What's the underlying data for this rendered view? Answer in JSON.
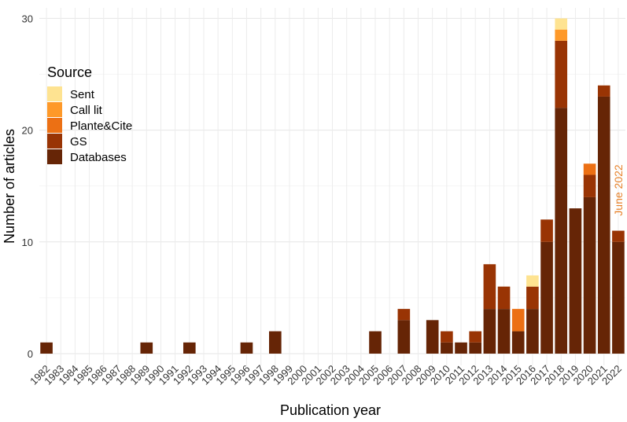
{
  "chart_data": {
    "type": "bar",
    "stacked": true,
    "xlabel": "Publication year",
    "ylabel": "Number of articles",
    "ylim": [
      0,
      31
    ],
    "yticks": [
      0,
      10,
      20,
      30
    ],
    "grid": true,
    "legend_title": "Source",
    "legend_position": "top-left",
    "annotation": {
      "text": "June 2022",
      "color": "#E8822A",
      "year": "2022"
    },
    "categories": [
      "1982",
      "1983",
      "1984",
      "1985",
      "1986",
      "1987",
      "1988",
      "1989",
      "1990",
      "1991",
      "1992",
      "1993",
      "1994",
      "1995",
      "1996",
      "1997",
      "1998",
      "1999",
      "2000",
      "2001",
      "2002",
      "2003",
      "2004",
      "2005",
      "2006",
      "2007",
      "2008",
      "2009",
      "2010",
      "2011",
      "2012",
      "2013",
      "2014",
      "2015",
      "2016",
      "2017",
      "2018",
      "2019",
      "2020",
      "2021",
      "2022"
    ],
    "series": [
      {
        "name": "Databases",
        "color": "#662506",
        "values": [
          1,
          0,
          0,
          0,
          0,
          0,
          0,
          1,
          0,
          0,
          1,
          0,
          0,
          0,
          1,
          0,
          2,
          0,
          0,
          0,
          0,
          0,
          0,
          2,
          0,
          3,
          0,
          3,
          1,
          1,
          1,
          4,
          4,
          2,
          4,
          10,
          22,
          13,
          14,
          23,
          10
        ]
      },
      {
        "name": "GS",
        "color": "#993404",
        "values": [
          0,
          0,
          0,
          0,
          0,
          0,
          0,
          0,
          0,
          0,
          0,
          0,
          0,
          0,
          0,
          0,
          0,
          0,
          0,
          0,
          0,
          0,
          0,
          0,
          0,
          1,
          0,
          0,
          1,
          0,
          1,
          4,
          2,
          0,
          2,
          2,
          6,
          0,
          2,
          1,
          1
        ]
      },
      {
        "name": "Plante&Cite",
        "color": "#EC7014",
        "values": [
          0,
          0,
          0,
          0,
          0,
          0,
          0,
          0,
          0,
          0,
          0,
          0,
          0,
          0,
          0,
          0,
          0,
          0,
          0,
          0,
          0,
          0,
          0,
          0,
          0,
          0,
          0,
          0,
          0,
          0,
          0,
          0,
          0,
          2,
          0,
          0,
          0,
          0,
          1,
          0,
          0
        ]
      },
      {
        "name": "Call lit",
        "color": "#FE9929",
        "values": [
          0,
          0,
          0,
          0,
          0,
          0,
          0,
          0,
          0,
          0,
          0,
          0,
          0,
          0,
          0,
          0,
          0,
          0,
          0,
          0,
          0,
          0,
          0,
          0,
          0,
          0,
          0,
          0,
          0,
          0,
          0,
          0,
          0,
          0,
          0,
          0,
          1,
          0,
          0,
          0,
          0
        ]
      },
      {
        "name": "Sent",
        "color": "#FEE391",
        "values": [
          0,
          0,
          0,
          0,
          0,
          0,
          0,
          0,
          0,
          0,
          0,
          0,
          0,
          0,
          0,
          0,
          0,
          0,
          0,
          0,
          0,
          0,
          0,
          0,
          0,
          0,
          0,
          0,
          0,
          0,
          0,
          0,
          0,
          0,
          1,
          0,
          1,
          0,
          0,
          0,
          0
        ]
      }
    ],
    "legend_order": [
      "Sent",
      "Call lit",
      "Plante&Cite",
      "GS",
      "Databases"
    ]
  }
}
